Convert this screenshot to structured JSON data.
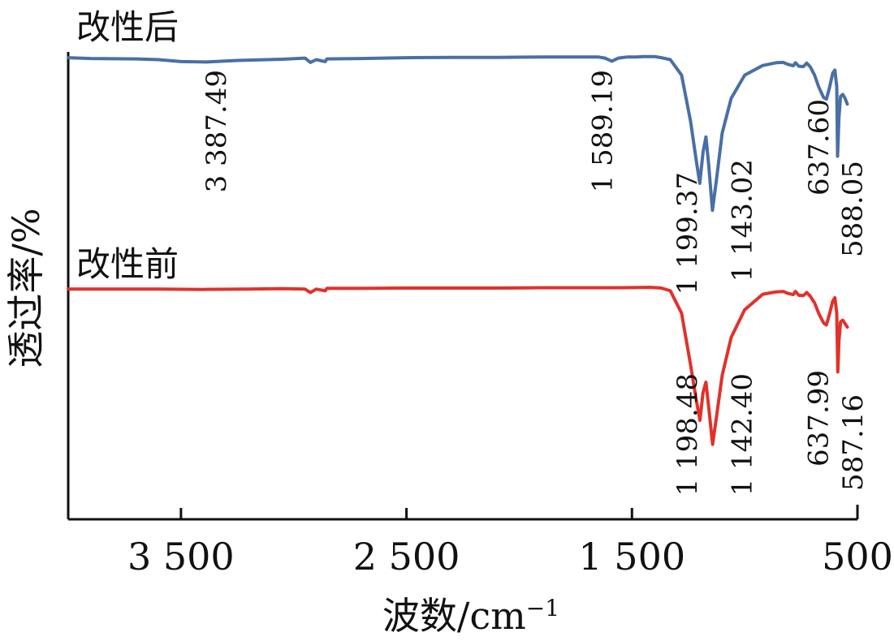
{
  "chart_data": {
    "type": "line",
    "xlabel": "波数/cm",
    "xlabel_sup": "−1",
    "ylabel": "透过率/%",
    "x_reversed": true,
    "xlim": [
      4000,
      500
    ],
    "x_ticks": [
      3500,
      2500,
      1500,
      500
    ],
    "x_tick_labels": [
      "3 500",
      "2 500",
      "1 500",
      "500"
    ],
    "grid": false,
    "series": [
      {
        "name": "改性后",
        "color": "#4a6fa5",
        "x": [
          4000,
          3900,
          3700,
          3600,
          3500,
          3387.49,
          3250,
          3050,
          2950,
          2926,
          2900,
          2860,
          2853,
          2700,
          2500,
          2300,
          2100,
          1900,
          1750,
          1650,
          1620,
          1589.19,
          1560,
          1520,
          1480,
          1450,
          1400,
          1370,
          1330,
          1280,
          1240,
          1215,
          1199.37,
          1185,
          1172,
          1160,
          1143.02,
          1125,
          1100,
          1060,
          1000,
          920,
          860,
          830,
          810,
          785,
          775,
          760,
          740,
          725,
          710,
          690,
          672,
          650,
          637.6,
          625,
          610,
          600,
          592,
          588.05,
          582,
          575,
          565,
          555,
          545
        ],
        "y": [
          98.5,
          98.3,
          98.2,
          98.0,
          97.5,
          97.4,
          97.8,
          98.1,
          98.4,
          97.3,
          98.0,
          97.5,
          98.2,
          98.3,
          98.5,
          98.6,
          98.6,
          98.7,
          98.7,
          98.7,
          98.4,
          97.6,
          98.4,
          98.7,
          98.7,
          98.8,
          98.8,
          98.5,
          98.0,
          94,
          82,
          72,
          66,
          74,
          78,
          71,
          59,
          67,
          79,
          88,
          94,
          96.5,
          97.2,
          97.3,
          96.8,
          96.4,
          97.2,
          96.3,
          96.2,
          97.1,
          96.2,
          94.0,
          91.0,
          88.2,
          87.8,
          90.5,
          94.5,
          95.3,
          91.0,
          73.0,
          83.0,
          88.5,
          89.0,
          88.0,
          86.5
        ]
      },
      {
        "name": "改性前",
        "color": "#e0322b",
        "x": [
          4000,
          3800,
          3600,
          3400,
          3200,
          3050,
          2950,
          2926,
          2900,
          2860,
          2853,
          2700,
          2500,
          2300,
          2100,
          1900,
          1700,
          1550,
          1420,
          1370,
          1330,
          1280,
          1240,
          1215,
          1198.48,
          1185,
          1172,
          1160,
          1142.4,
          1125,
          1100,
          1060,
          1000,
          920,
          860,
          830,
          810,
          785,
          775,
          760,
          740,
          725,
          710,
          690,
          672,
          650,
          637.99,
          625,
          610,
          600,
          592,
          587.16,
          582,
          575,
          565,
          555,
          545
        ],
        "y": [
          52.0,
          52.0,
          52.0,
          51.9,
          52.0,
          52.1,
          52.0,
          51.0,
          52.0,
          51.5,
          52.2,
          52.2,
          52.3,
          52.3,
          52.3,
          52.4,
          52.4,
          52.4,
          52.5,
          52.3,
          51.5,
          45,
          30,
          20,
          14,
          22,
          25,
          18,
          7,
          15,
          27,
          38,
          46,
          50.5,
          51.2,
          51.3,
          50.8,
          50.4,
          51.3,
          50.2,
          50.1,
          51.0,
          50.0,
          48.0,
          45.0,
          42.2,
          41.6,
          44.5,
          48.5,
          49.5,
          45.0,
          28.0,
          37.0,
          42.5,
          43.0,
          42.0,
          41.0
        ]
      }
    ],
    "annotations": [
      {
        "text": "3 387.49",
        "x": 3387.49,
        "series": 0
      },
      {
        "text": "1 589.19",
        "x": 1589.19,
        "series": 0
      },
      {
        "text": "1 199.37",
        "x": 1199.37,
        "series": 0
      },
      {
        "text": "1 143.02",
        "x": 1143.02,
        "series": 0
      },
      {
        "text": "637.60",
        "x": 637.6,
        "series": 0
      },
      {
        "text": "588.05",
        "x": 588.05,
        "series": 0
      },
      {
        "text": "1 198.48",
        "x": 1198.48,
        "series": 1
      },
      {
        "text": "1 142.40",
        "x": 1142.4,
        "series": 1
      },
      {
        "text": "637.99",
        "x": 637.99,
        "series": 1
      },
      {
        "text": "587.16",
        "x": 587.16,
        "series": 1
      }
    ]
  }
}
